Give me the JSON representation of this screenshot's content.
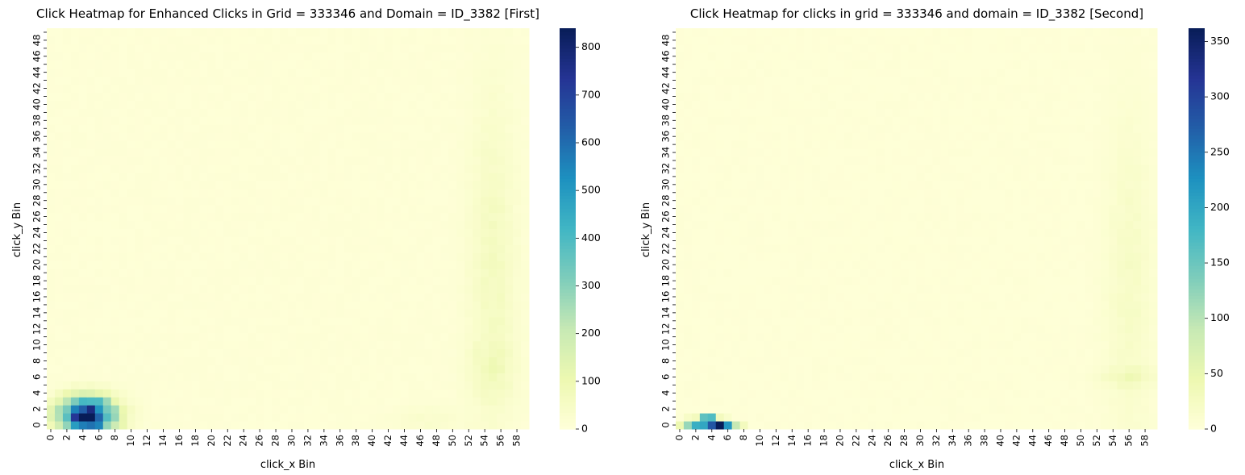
{
  "colormap": "YlGnBu",
  "colors": {
    "stops": [
      "#ffffd9",
      "#edf8b1",
      "#c7e9b4",
      "#7fcdbb",
      "#41b6c4",
      "#1d91c0",
      "#225ea8",
      "#253494",
      "#081d58"
    ]
  },
  "chart_data": [
    {
      "type": "heatmap",
      "title": "Click Heatmap for Enhanced Clicks in Grid = 333346 and Domain = ID_3382 [First]",
      "xlabel": "click_x Bin",
      "ylabel": "click_y Bin",
      "x_bins": [
        0,
        59
      ],
      "y_bins": [
        0,
        49
      ],
      "x_tick_labels": [
        "0",
        "2",
        "4",
        "6",
        "8",
        "10",
        "12",
        "14",
        "16",
        "18",
        "20",
        "22",
        "24",
        "26",
        "28",
        "30",
        "32",
        "34",
        "36",
        "38",
        "40",
        "42",
        "44",
        "46",
        "48",
        "50",
        "52",
        "54",
        "56",
        "58"
      ],
      "y_tick_labels": [
        "0",
        "2",
        "4",
        "6",
        "8",
        "10",
        "12",
        "14",
        "16",
        "18",
        "20",
        "22",
        "24",
        "26",
        "28",
        "30",
        "32",
        "34",
        "36",
        "38",
        "40",
        "42",
        "44",
        "46",
        "48"
      ],
      "colorbar": {
        "min": 0,
        "max": 840,
        "ticks": [
          0,
          100,
          200,
          300,
          400,
          500,
          600,
          700,
          800
        ]
      },
      "hotspots": [
        {
          "x": 4.5,
          "y": 1.2,
          "peak": 830,
          "sx": 2.3,
          "sy": 1.5
        },
        {
          "x": 55,
          "y": 20,
          "peak": 55,
          "sx": 2.0,
          "sy": 14
        },
        {
          "x": 55,
          "y": 7,
          "peak": 40,
          "sx": 2.0,
          "sy": 2.5
        },
        {
          "x": 47,
          "y": 0.5,
          "peak": 25,
          "sx": 3.0,
          "sy": 1.2
        }
      ],
      "background": 8
    },
    {
      "type": "heatmap",
      "title": "Click Heatmap for clicks in grid = 333346 and domain = ID_3382 [Second]",
      "xlabel": "click_x Bin",
      "ylabel": "click_y Bin",
      "x_bins": [
        0,
        59
      ],
      "y_bins": [
        0,
        49
      ],
      "x_tick_labels": [
        "0",
        "2",
        "4",
        "6",
        "8",
        "10",
        "12",
        "14",
        "16",
        "18",
        "20",
        "22",
        "24",
        "26",
        "28",
        "30",
        "32",
        "34",
        "36",
        "38",
        "40",
        "42",
        "44",
        "46",
        "48",
        "50",
        "52",
        "54",
        "56",
        "58"
      ],
      "y_tick_labels": [
        "0",
        "2",
        "4",
        "6",
        "8",
        "10",
        "12",
        "14",
        "16",
        "18",
        "20",
        "22",
        "24",
        "26",
        "28",
        "30",
        "32",
        "34",
        "36",
        "38",
        "40",
        "42",
        "44",
        "46",
        "48"
      ],
      "colorbar": {
        "min": 0,
        "max": 362,
        "ticks": [
          0,
          50,
          100,
          150,
          200,
          250,
          300,
          350
        ]
      },
      "cells": [
        {
          "x": 5,
          "y": 0,
          "value": 362
        },
        {
          "x": 4,
          "y": 0,
          "value": 280
        },
        {
          "x": 6,
          "y": 0,
          "value": 220
        },
        {
          "x": 3,
          "y": 0,
          "value": 200
        },
        {
          "x": 2,
          "y": 0,
          "value": 190
        },
        {
          "x": 1,
          "y": 0,
          "value": 120
        },
        {
          "x": 7,
          "y": 0,
          "value": 90
        },
        {
          "x": 8,
          "y": 0,
          "value": 30
        },
        {
          "x": 0,
          "y": 0,
          "value": 45
        },
        {
          "x": 3,
          "y": 1,
          "value": 160
        },
        {
          "x": 4,
          "y": 1,
          "value": 170
        },
        {
          "x": 2,
          "y": 1,
          "value": 30
        },
        {
          "x": 5,
          "y": 1,
          "value": 30
        },
        {
          "x": 1,
          "y": 1,
          "value": 20
        },
        {
          "x": 6,
          "y": 1,
          "value": 15
        }
      ],
      "hotspots": [
        {
          "x": 56,
          "y": 18,
          "peak": 18,
          "sx": 2.0,
          "sy": 14
        },
        {
          "x": 56,
          "y": 6,
          "peak": 22,
          "sx": 2.5,
          "sy": 0.8
        }
      ],
      "background": 3
    }
  ]
}
